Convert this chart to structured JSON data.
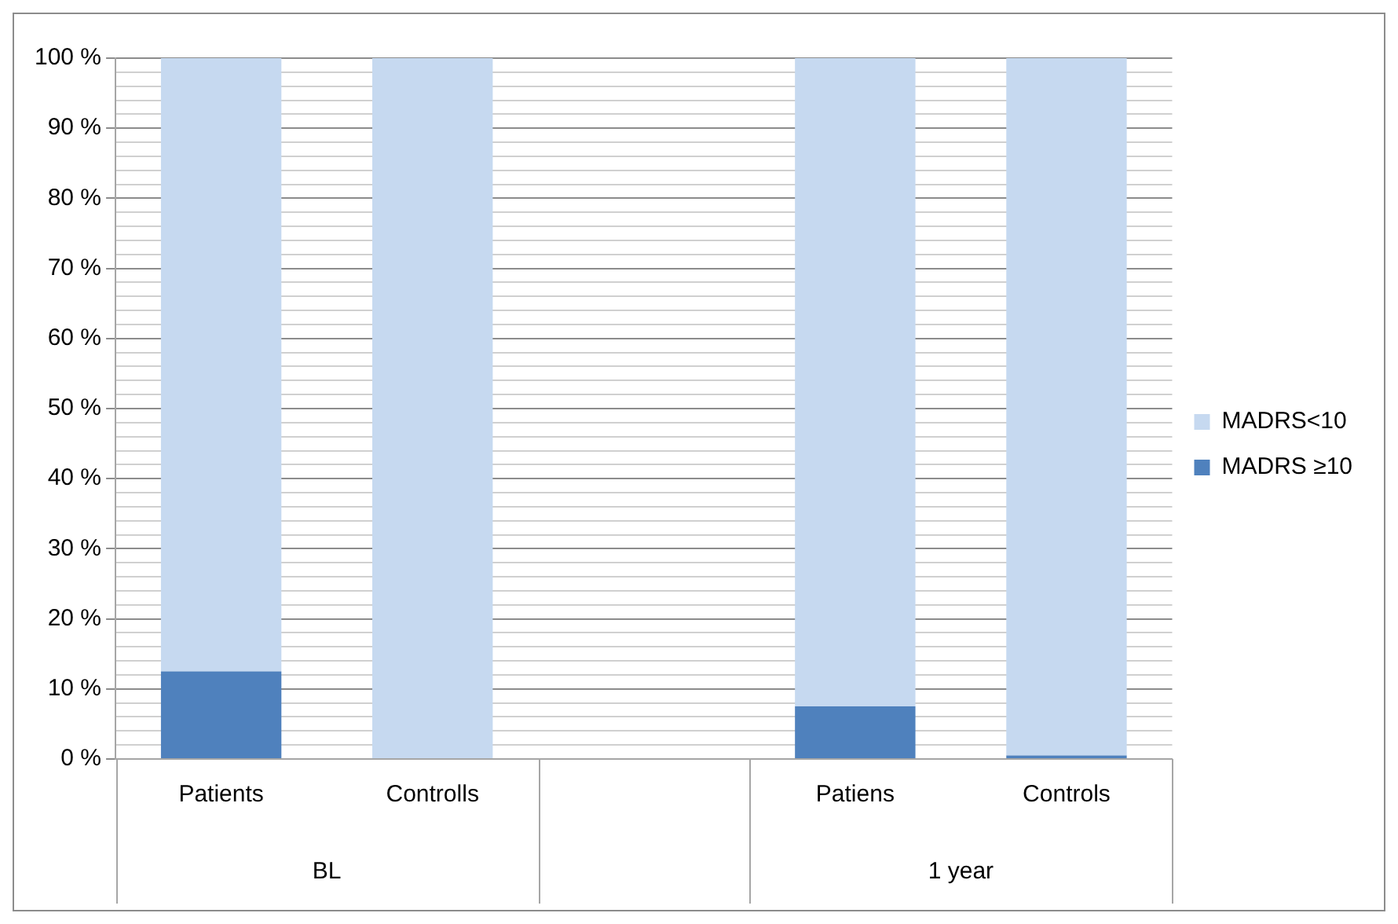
{
  "chart_data": {
    "type": "bar",
    "stacked": true,
    "grid": "y",
    "legend": "right",
    "categories": [
      "Patients",
      "Controlls",
      null,
      "Patiens",
      "Controls"
    ],
    "series": [
      {
        "name": "MADRS ≥10",
        "color": "#4f81bd",
        "values": [
          12.5,
          0,
          null,
          7.5,
          0.5
        ]
      },
      {
        "name": "MADRS<10",
        "color": "#c6d9f0",
        "values": [
          87.5,
          100,
          null,
          92.5,
          99.5
        ]
      }
    ],
    "ylim": [
      0,
      100
    ],
    "yticks": [
      {
        "value": 0,
        "label": "0 %"
      },
      {
        "value": 2,
        "label": null
      },
      {
        "value": 4,
        "label": null
      },
      {
        "value": 6,
        "label": null
      },
      {
        "value": 8,
        "label": null
      },
      {
        "value": 10,
        "label": "10 %"
      },
      {
        "value": 12,
        "label": null
      },
      {
        "value": 14,
        "label": null
      },
      {
        "value": 16,
        "label": null
      },
      {
        "value": 18,
        "label": null
      },
      {
        "value": 20,
        "label": "20 %"
      },
      {
        "value": 22,
        "label": null
      },
      {
        "value": 24,
        "label": null
      },
      {
        "value": 26,
        "label": null
      },
      {
        "value": 28,
        "label": null
      },
      {
        "value": 30,
        "label": "30 %"
      },
      {
        "value": 32,
        "label": null
      },
      {
        "value": 34,
        "label": null
      },
      {
        "value": 36,
        "label": null
      },
      {
        "value": 38,
        "label": null
      },
      {
        "value": 40,
        "label": "40 %"
      },
      {
        "value": 42,
        "label": null
      },
      {
        "value": 44,
        "label": null
      },
      {
        "value": 46,
        "label": null
      },
      {
        "value": 48,
        "label": null
      },
      {
        "value": 50,
        "label": "50 %"
      },
      {
        "value": 52,
        "label": null
      },
      {
        "value": 54,
        "label": null
      },
      {
        "value": 56,
        "label": null
      },
      {
        "value": 58,
        "label": null
      },
      {
        "value": 60,
        "label": "60 %"
      },
      {
        "value": 62,
        "label": null
      },
      {
        "value": 64,
        "label": null
      },
      {
        "value": 66,
        "label": null
      },
      {
        "value": 68,
        "label": null
      },
      {
        "value": 70,
        "label": "70 %"
      },
      {
        "value": 72,
        "label": null
      },
      {
        "value": 74,
        "label": null
      },
      {
        "value": 76,
        "label": null
      },
      {
        "value": 78,
        "label": null
      },
      {
        "value": 80,
        "label": "80 %"
      },
      {
        "value": 82,
        "label": null
      },
      {
        "value": 84,
        "label": null
      },
      {
        "value": 86,
        "label": null
      },
      {
        "value": 88,
        "label": null
      },
      {
        "value": 90,
        "label": "90 %"
      },
      {
        "value": 92,
        "label": null
      },
      {
        "value": 94,
        "label": null
      },
      {
        "value": 96,
        "label": null
      },
      {
        "value": 98,
        "label": null
      },
      {
        "value": 100,
        "label": "100 %"
      }
    ],
    "annotations": [
      "BL",
      "1 year"
    ]
  }
}
